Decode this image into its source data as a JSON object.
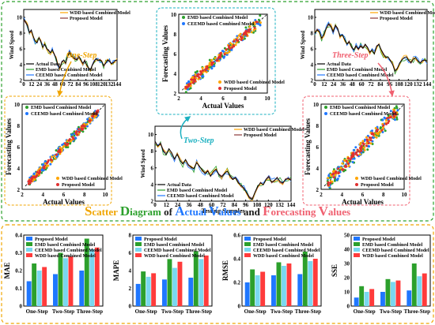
{
  "colors": {
    "actual": "#000000",
    "wdd": "#ffa500",
    "proposed": "#8b3a3a",
    "emd": "#2ca02c",
    "ceemd": "#1f77ff",
    "proposed_bar": "#1f77ff",
    "emd_bar": "#2ca02c",
    "ceemd_bar": "#7ad8f0",
    "wdd_bar": "#ff3b3b",
    "green_frame": "#2ca02c",
    "orange_frame": "#f0a500",
    "teal_frame": "#1ab0c0",
    "pink_frame": "#f06070"
  },
  "steps": {
    "one": "One-Step",
    "two": "Two-Step",
    "three": "Three-Step"
  },
  "title": {
    "parts": [
      {
        "t": "S",
        "c": "#f0a500"
      },
      {
        "t": "catter ",
        "c": "#f0a500"
      },
      {
        "t": "D",
        "c": "#2ca02c"
      },
      {
        "t": "iagram ",
        "c": "#2ca02c"
      },
      {
        "t": "of ",
        "c": "#1a1a1a"
      },
      {
        "t": "A",
        "c": "#1f77ff"
      },
      {
        "t": "ctual ",
        "c": "#1f77ff"
      },
      {
        "t": "V",
        "c": "#1f77ff"
      },
      {
        "t": "alues ",
        "c": "#1f77ff"
      },
      {
        "t": "and ",
        "c": "#1a1a1a"
      },
      {
        "t": "F",
        "c": "#f06070"
      },
      {
        "t": "orecasting ",
        "c": "#f06070"
      },
      {
        "t": "V",
        "c": "#f06070"
      },
      {
        "t": "alues",
        "c": "#f06070"
      }
    ]
  },
  "chart_data": [
    {
      "id": "ts_one",
      "type": "line",
      "ylabel": "Wind Speed",
      "xlabel": "",
      "xticks": [
        0,
        12,
        24,
        36,
        48,
        60,
        72,
        84,
        96,
        108,
        120,
        132,
        144
      ],
      "xlim": [
        0,
        144
      ],
      "ylim": [
        2,
        11
      ],
      "legend_top": [
        "WDD based Combined Model",
        "Proposed Model"
      ],
      "legend_bottom": [
        "Actual Data",
        "EMD based Combined Model",
        "CEEMD based Combined Model"
      ],
      "actual": [
        9.8,
        9.4,
        9.0,
        8.1,
        8.4,
        7.6,
        7.0,
        6.8,
        7.4,
        6.9,
        6.2,
        6.6,
        6.1,
        5.8,
        5.5,
        5.9,
        5.3,
        4.8,
        3.9,
        3.6,
        4.3,
        4.6,
        4.2,
        5.0,
        5.6,
        5.1,
        4.9,
        4.7,
        4.6,
        5.0,
        4.6,
        4.2,
        4.5,
        4.0,
        3.6,
        3.4,
        3.9,
        4.4,
        4.8,
        4.5,
        4.6,
        4.4,
        3.9,
        4.2,
        4.6,
        4.4,
        4.1,
        4.3,
        4.5,
        4.6
      ]
    },
    {
      "id": "ts_three",
      "type": "line",
      "ylabel": "Wind Speed",
      "xlabel": "",
      "xticks": [
        0,
        12,
        24,
        36,
        48,
        60,
        72,
        84,
        96,
        108,
        120,
        132,
        144
      ],
      "xlim": [
        0,
        144
      ],
      "ylim": [
        2,
        11
      ],
      "legend_top": [
        "WDD based Combined Model",
        "Proposed Model"
      ],
      "legend_bottom": [
        "Actual Data",
        "EMD based Combined Model",
        "CEEMD based Combined Model"
      ],
      "actual": [
        8.0,
        8.4,
        8.2,
        7.4,
        7.8,
        8.6,
        9.2,
        8.9,
        8.2,
        9.0,
        8.6,
        7.6,
        7.8,
        7.2,
        6.6,
        6.9,
        6.3,
        5.9,
        6.4,
        6.0,
        6.4,
        6.1,
        6.6,
        6.2,
        5.6,
        5.9,
        5.4,
        6.3,
        6.6,
        5.9,
        5.3,
        4.9,
        5.0,
        4.5,
        4.0,
        3.2,
        3.5,
        4.2,
        4.6,
        4.9,
        5.0,
        4.5,
        4.3,
        4.7,
        4.9,
        4.5,
        4.2,
        4.5,
        4.6,
        4.4
      ]
    },
    {
      "id": "ts_two",
      "type": "line",
      "ylabel": "Wind Speed",
      "xlabel": "Testing Samples",
      "xticks": [
        0,
        12,
        24,
        36,
        48,
        60,
        72,
        84,
        96,
        108,
        120,
        132,
        144
      ],
      "xlim": [
        0,
        144
      ],
      "ylim": [
        2,
        11
      ],
      "legend_top": [
        "WDD based Combined Model",
        "Proposed Model"
      ],
      "legend_bottom": [
        "Actual Data",
        "EMD based Combined Model",
        "CEEMD based Combined Model"
      ],
      "actual": [
        9.2,
        8.6,
        8.9,
        8.0,
        7.6,
        8.3,
        7.8,
        7.1,
        7.6,
        6.9,
        6.5,
        7.0,
        6.4,
        6.1,
        5.9,
        6.6,
        6.2,
        5.7,
        5.3,
        5.6,
        5.0,
        5.5,
        5.8,
        5.2,
        4.9,
        5.3,
        5.6,
        5.0,
        4.6,
        4.8,
        4.2,
        3.9,
        3.6,
        3.0,
        2.4,
        2.2,
        3.1,
        3.8,
        4.2,
        4.0,
        4.6,
        4.9,
        4.3,
        4.5,
        4.8,
        4.4,
        4.2,
        4.6,
        4.7,
        4.5
      ]
    },
    {
      "id": "sc_one",
      "type": "scatter",
      "xlabel": "Actual Values",
      "ylabel": "Forecasting Values",
      "xlim": [
        2,
        10
      ],
      "ylim": [
        2,
        10
      ],
      "ticks": [
        2,
        4,
        6,
        8,
        10
      ],
      "legend_top": [
        "EMD based Combined Model",
        "CEEMD based Combined Model"
      ],
      "legend_bottom": [
        "WDD based Combined Model",
        "Proposed Model"
      ],
      "spread": 0.45
    },
    {
      "id": "sc_two",
      "type": "scatter",
      "xlabel": "Actual Values",
      "ylabel": "Forecasting Values",
      "xlim": [
        2,
        10
      ],
      "ylim": [
        2,
        10
      ],
      "ticks": [
        2,
        4,
        6,
        8,
        10
      ],
      "legend_top": [
        "EMD based Combined Model",
        "CEEMD based Combined Model"
      ],
      "legend_bottom": [
        "WDD based Combined Model",
        "Proposed Model"
      ],
      "spread": 0.6
    },
    {
      "id": "sc_three",
      "type": "scatter",
      "xlabel": "Actual Values",
      "ylabel": "Forecasting Values",
      "xlim": [
        2,
        10
      ],
      "ylim": [
        2,
        10
      ],
      "ticks": [
        2,
        4,
        6,
        8,
        10
      ],
      "legend_top": [
        "EMD based Combined Model",
        "CEEMD based Combined Model"
      ],
      "legend_bottom": [
        "WDD based Combined Model",
        "Proposed Model"
      ],
      "spread": 0.75
    },
    {
      "id": "bar_mae",
      "type": "bar",
      "ylabel": "MAE",
      "categories": [
        "One-Step",
        "Two-Step",
        "Three-Step"
      ],
      "ylim": [
        0,
        0.4
      ],
      "yticks": [
        0,
        0.1,
        0.2,
        0.3,
        0.4
      ],
      "series": [
        {
          "name": "Proposed Model",
          "values": [
            0.14,
            0.18,
            0.2
          ]
        },
        {
          "name": "EMD based Combined Model",
          "values": [
            0.24,
            0.3,
            0.38
          ]
        },
        {
          "name": "CEEMD based Combined Model",
          "values": [
            0.2,
            0.27,
            0.32
          ]
        },
        {
          "name": "WDD based Combined Model",
          "values": [
            0.22,
            0.28,
            0.33
          ]
        }
      ]
    },
    {
      "id": "bar_mape",
      "type": "bar",
      "ylabel": "MAPE",
      "categories": [
        "One-Step",
        "Two-Step",
        "Three-Step"
      ],
      "ylim": [
        0,
        8
      ],
      "yticks": [
        0,
        2,
        4,
        6,
        8
      ],
      "series": [
        {
          "name": "Proposed Model",
          "values": [
            2.5,
            3.0,
            3.2
          ]
        },
        {
          "name": "EMD based Combined Model",
          "values": [
            3.9,
            5.3,
            6.2
          ]
        },
        {
          "name": "CEEMD based Combined Model",
          "values": [
            3.3,
            4.3,
            5.3
          ]
        },
        {
          "name": "WDD based Combined Model",
          "values": [
            3.7,
            5.0,
            5.7
          ]
        }
      ]
    },
    {
      "id": "bar_rmse",
      "type": "bar",
      "ylabel": "RMSE",
      "categories": [
        "One-Step",
        "Two-Step",
        "Three-Step"
      ],
      "ylim": [
        0,
        0.6
      ],
      "yticks": [
        0,
        0.2,
        0.4,
        0.6
      ],
      "series": [
        {
          "name": "Proposed Model",
          "values": [
            0.2,
            0.26,
            0.27
          ]
        },
        {
          "name": "EMD based Combined Model",
          "values": [
            0.31,
            0.37,
            0.46
          ]
        },
        {
          "name": "CEEMD based Combined Model",
          "values": [
            0.26,
            0.34,
            0.38
          ]
        },
        {
          "name": "WDD based Combined Model",
          "values": [
            0.29,
            0.36,
            0.4
          ]
        }
      ]
    },
    {
      "id": "bar_sse",
      "type": "bar",
      "ylabel": "SSE",
      "categories": [
        "One-Step",
        "Two-Step",
        "Three-Step"
      ],
      "ylim": [
        0,
        50
      ],
      "yticks": [
        0,
        10,
        20,
        30,
        40,
        50
      ],
      "series": [
        {
          "name": "Proposed Model",
          "values": [
            6,
            10,
            11
          ]
        },
        {
          "name": "EMD based Combined Model",
          "values": [
            14,
            19,
            30
          ]
        },
        {
          "name": "CEEMD based Combined Model",
          "values": [
            10,
            17,
            21
          ]
        },
        {
          "name": "WDD based Combined Model",
          "values": [
            12,
            18,
            23
          ]
        }
      ]
    }
  ]
}
